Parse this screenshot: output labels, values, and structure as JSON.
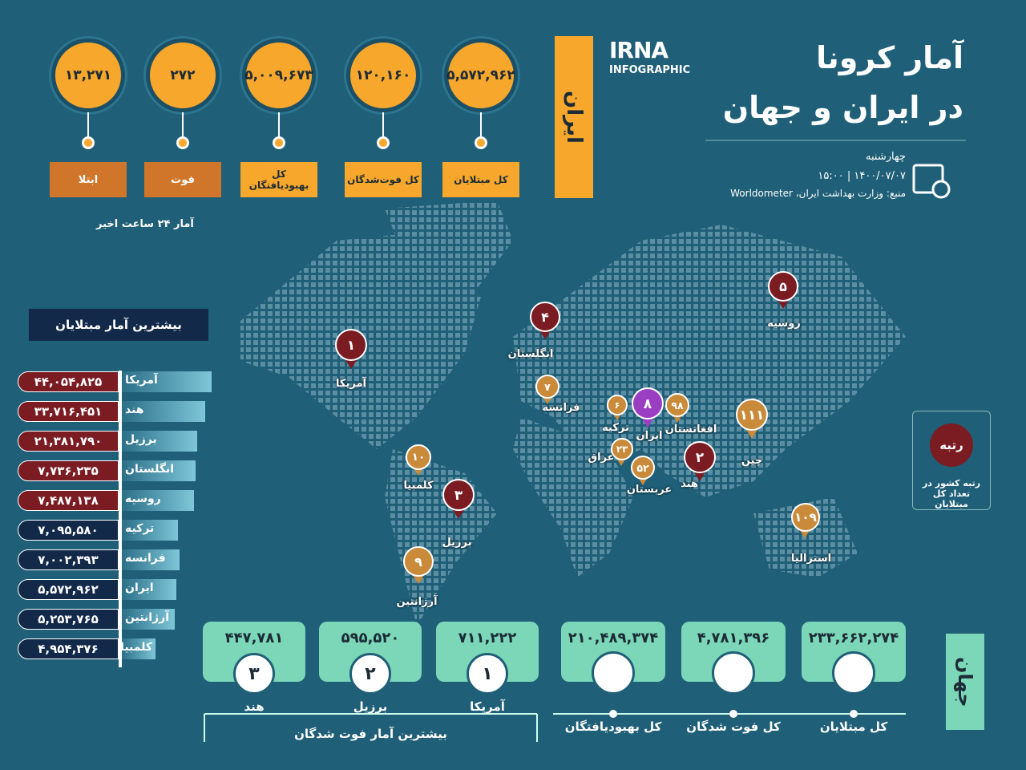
{
  "header": {
    "title_line1": "آمار کرونا",
    "title_line2": "در ایران و جهان",
    "logo": "IRNA",
    "logo_sub": "INFOGRAPHIC",
    "day": "چهارشنبه",
    "date_time": "۱۴۰۰/۰۷/۰۷  |  ۱۵:۰۰",
    "source": "منبع: وزارت بهداشت ایران، Worldometer"
  },
  "iran": {
    "label": "ایران",
    "cards": [
      {
        "value": "۵,۵۷۲,۹۶۲",
        "label": "کل مبتلایان"
      },
      {
        "value": "۱۲۰,۱۶۰",
        "label": "کل فوت‌شدگان"
      },
      {
        "value": "۵,۰۰۹,۶۷۳",
        "label": "کل بهبودیافتگان"
      },
      {
        "value": "۲۷۲",
        "label": "فوت"
      },
      {
        "value": "۱۳,۲۷۱",
        "label": "ابتلا"
      }
    ],
    "note": "آمار ۲۴ ساعت اخیر"
  },
  "top_cases": {
    "title": "بیشترین آمار مبتلایان",
    "rows": [
      [
        "آمریکا",
        "۴۴,۰۵۴,۸۲۵"
      ],
      [
        "هند",
        "۳۳,۷۱۶,۴۵۱"
      ],
      [
        "برزیل",
        "۲۱,۳۸۱,۷۹۰"
      ],
      [
        "انگلستان",
        "۷,۷۳۶,۲۳۵"
      ],
      [
        "روسیه",
        "۷,۴۸۷,۱۳۸"
      ],
      [
        "ترکیه",
        "۷,۰۹۵,۵۸۰"
      ],
      [
        "فرانسه",
        "۷,۰۰۲,۳۹۳"
      ],
      [
        "ایران",
        "۵,۵۷۲,۹۶۲"
      ],
      [
        "آرژانتین",
        "۵,۲۵۳,۷۶۵"
      ],
      [
        "کلمبیا",
        "۴,۹۵۴,۳۷۶"
      ]
    ]
  },
  "map": {
    "pins": [
      {
        "rank": "۱",
        "name": "آمریکا"
      },
      {
        "rank": "۲",
        "name": "هند"
      },
      {
        "rank": "۳",
        "name": "برزیل"
      },
      {
        "rank": "۴",
        "name": "انگلستان"
      },
      {
        "rank": "۵",
        "name": "روسیه"
      },
      {
        "rank": "۶",
        "name": "ترکیه"
      },
      {
        "rank": "۷",
        "name": "فرانسه"
      },
      {
        "rank": "۸",
        "name": "ایران"
      },
      {
        "rank": "۹",
        "name": "آرژانتین"
      },
      {
        "rank": "۱۰",
        "name": "کلمبیا"
      },
      {
        "rank": "۲۳",
        "name": "عراق"
      },
      {
        "rank": "۵۲",
        "name": "عربستان"
      },
      {
        "rank": "۹۸",
        "name": "افغانستان"
      },
      {
        "rank": "۱۰۹",
        "name": "استرالیا"
      },
      {
        "rank": "۱۱۱",
        "name": "چین"
      }
    ],
    "legend_title": "رتبه",
    "legend_text": "رتبه کشور در تعداد کل مبتلایان"
  },
  "world": {
    "label": "جهان",
    "cards": [
      {
        "value": "۲۳۳,۶۶۲,۲۷۴",
        "label": "کل مبتلایان"
      },
      {
        "value": "۴,۷۸۱,۳۹۶",
        "label": "کل فوت شدگان"
      },
      {
        "value": "۲۱۰,۴۸۹,۳۷۴",
        "label": "کل بهبودیافتگان"
      }
    ]
  },
  "top_deaths": {
    "title": "بیشترین آمار فوت شدگان",
    "rows": [
      {
        "rank": "۱",
        "name": "آمریکا",
        "value": "۷۱۱,۲۲۲"
      },
      {
        "rank": "۲",
        "name": "برزیل",
        "value": "۵۹۵,۵۲۰"
      },
      {
        "rank": "۳",
        "name": "هند",
        "value": "۴۴۷,۷۸۱"
      }
    ]
  }
}
